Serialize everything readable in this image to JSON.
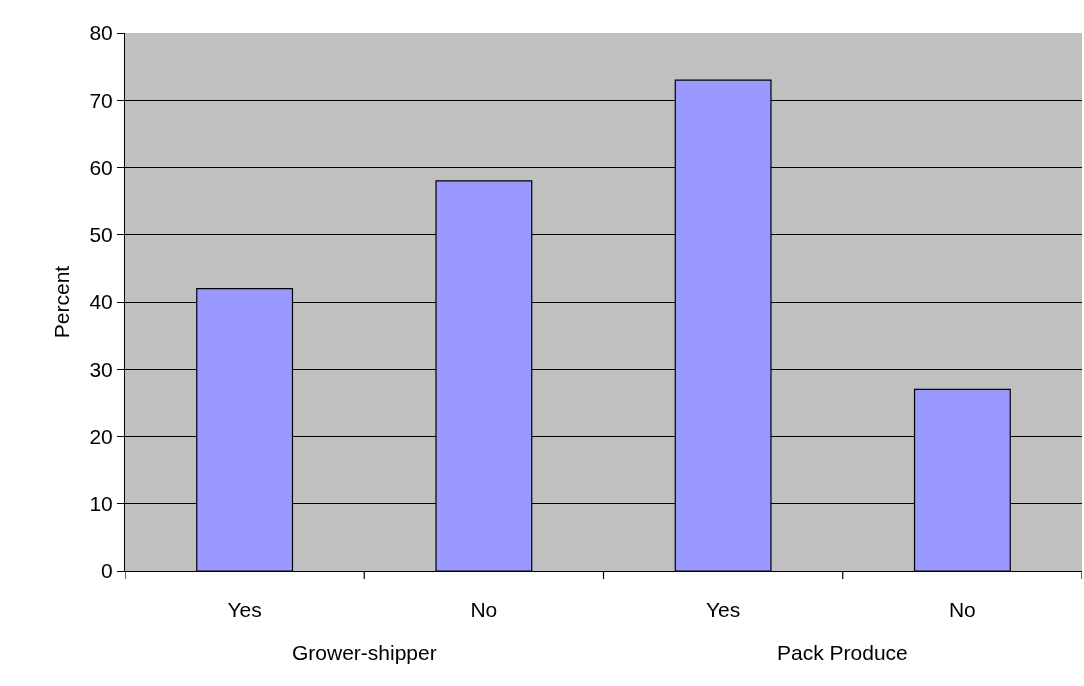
{
  "chart_data": {
    "type": "bar",
    "categories": [
      "Yes",
      "No",
      "Yes",
      "No"
    ],
    "values": [
      42,
      58,
      73,
      27
    ],
    "color": "#9999ff",
    "ylabel": "Percent",
    "annotations": [
      "Grower-shipper",
      "Pack Produce"
    ],
    "ylim": [
      0,
      80
    ],
    "yticks": [
      0,
      10,
      20,
      30,
      40,
      50,
      60,
      70,
      80
    ],
    "grid": "y"
  }
}
